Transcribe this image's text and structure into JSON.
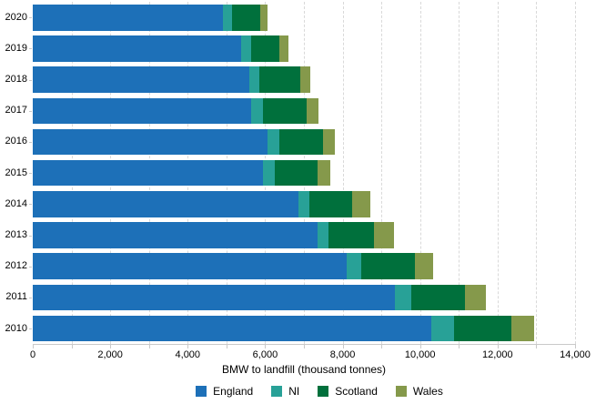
{
  "chart_data": {
    "type": "bar",
    "orientation": "horizontal",
    "stacked": true,
    "title": "",
    "xlabel": "BMW to landfill (thousand tonnes)",
    "ylabel": "",
    "categories": [
      "2020",
      "2019",
      "2018",
      "2017",
      "2016",
      "2015",
      "2014",
      "2013",
      "2012",
      "2011",
      "2010"
    ],
    "series": [
      {
        "name": "England",
        "color": "#1d70b8",
        "values": [
          4900,
          5390,
          5580,
          5645,
          6050,
          5950,
          6870,
          7355,
          8095,
          9350,
          10300
        ]
      },
      {
        "name": "NI",
        "color": "#28a197",
        "values": [
          240,
          250,
          260,
          290,
          315,
          310,
          275,
          280,
          390,
          430,
          565
        ]
      },
      {
        "name": "Scotland",
        "color": "#00703c",
        "values": [
          735,
          725,
          1070,
          1135,
          1130,
          1095,
          1095,
          1170,
          1370,
          1385,
          1500
        ]
      },
      {
        "name": "Wales",
        "color": "#85994b",
        "values": [
          195,
          235,
          260,
          295,
          310,
          320,
          475,
          510,
          490,
          530,
          585
        ]
      }
    ],
    "xlim": [
      0,
      14000
    ],
    "x_tick_values": [
      0,
      2000,
      4000,
      6000,
      8000,
      10000,
      12000,
      14000
    ],
    "x_tick_labels": [
      "0",
      "2,000",
      "4,000",
      "6,000",
      "8,000",
      "10,000",
      "12,000",
      "14,000"
    ],
    "minor_tick_interval": 1000,
    "grid": {
      "axis": "x",
      "interval": 1000,
      "style": "dashed",
      "color": "#d9d9d9"
    },
    "legend_position": "bottom",
    "legend_items": [
      "England",
      "NI",
      "Scotland",
      "Wales"
    ]
  },
  "colors": {
    "england": "#1d70b8",
    "ni": "#28a197",
    "scotland": "#00703c",
    "wales": "#85994b",
    "gridline": "#d9d9d9",
    "axis_line": "#c9c9c9",
    "text": "#000000",
    "background": "#ffffff"
  }
}
